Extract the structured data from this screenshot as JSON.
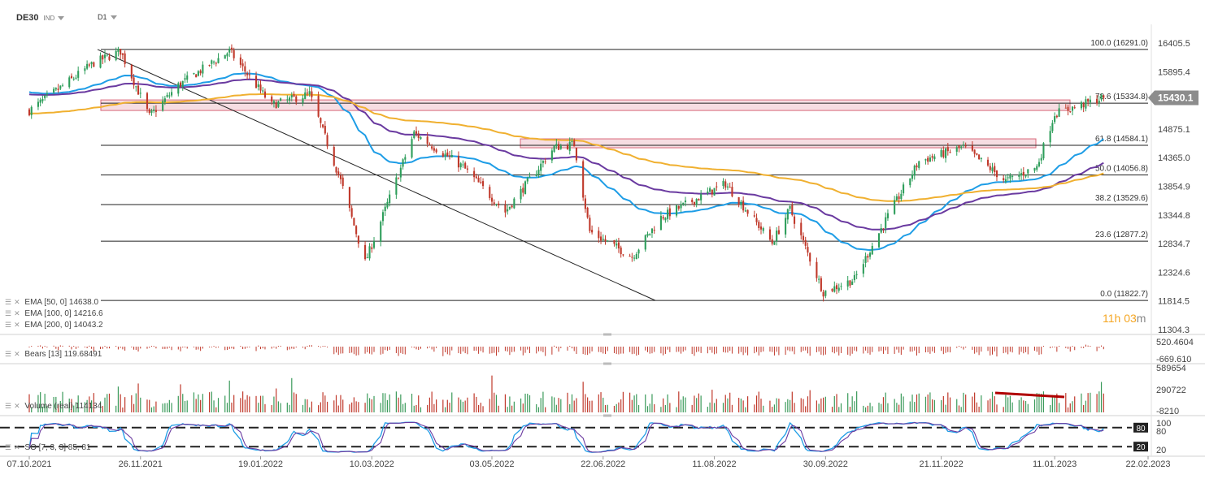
{
  "header": {
    "symbol": "DE30",
    "type": "IND",
    "timeframe": "D1"
  },
  "timer": {
    "hours": "11h",
    "minutes": "03",
    "unit": "m"
  },
  "price_badge": "15430.1",
  "price_axis": [
    "16405.5",
    "15895.4",
    "15385.3",
    "14875.1",
    "14365.0",
    "13854.9",
    "13344.8",
    "12834.7",
    "12324.6",
    "11814.5",
    "11304.3"
  ],
  "date_axis": [
    "07.10.2021",
    "26.11.2021",
    "19.01.2022",
    "10.03.2022",
    "03.05.2022",
    "22.06.2022",
    "11.08.2022",
    "30.09.2022",
    "21.11.2022",
    "11.01.2023",
    "22.02.2023"
  ],
  "fib_levels": [
    {
      "label": "100.0 (16291.0)",
      "value": 16291.0
    },
    {
      "label": "78.6 (15334.8)",
      "value": 15334.8
    },
    {
      "label": "61.8 (14584.1)",
      "value": 14584.1
    },
    {
      "label": "50.0 (14056.8)",
      "value": 14056.8
    },
    {
      "label": "38.2 (13529.6)",
      "value": 13529.6
    },
    {
      "label": "23.6 (12877.2)",
      "value": 12877.2
    },
    {
      "label": "0.0 (11822.7)",
      "value": 11822.7
    }
  ],
  "indicators": {
    "ema50": {
      "label": "EMA [50, 0]",
      "value": "14638.0",
      "color": "#1e9de6"
    },
    "ema100": {
      "label": "EMA [100, 0]",
      "value": "14216.6",
      "color": "#6a3aa0"
    },
    "ema200": {
      "label": "EMA [200, 0]",
      "value": "14043.2",
      "color": "#f0b030"
    }
  },
  "bears": {
    "label": "Bears [13]",
    "value": "119.68491",
    "axis_top": "520.4604",
    "axis_bottom": "-669.610"
  },
  "volume": {
    "label": "Volume (real)",
    "value": "114134",
    "axis": [
      "589654",
      "290722",
      "-8210"
    ]
  },
  "so": {
    "label": "SO [7, 3, 3]",
    "value": "85, 81",
    "axis": [
      "100",
      "80",
      "20"
    ],
    "level_high": "80",
    "level_low": "20"
  },
  "colors": {
    "up": "#2e9e5b",
    "down": "#c0392b",
    "zone_fill": "#f6dde2",
    "zone_stroke": "#d9687a",
    "badge": "#8c8c8c"
  },
  "chart_data": {
    "type": "candlestick",
    "symbol": "DE30",
    "timeframe": "D1",
    "x_range": [
      "07.10.2021",
      "22.02.2023"
    ],
    "y_range": [
      11304.3,
      16405.5
    ],
    "close_path": [
      {
        "date": "07.10.2021",
        "close": 15200
      },
      {
        "date": "05.11.2021",
        "close": 16050
      },
      {
        "date": "17.11.2021",
        "close": 16260
      },
      {
        "date": "30.11.2021",
        "close": 15100
      },
      {
        "date": "13.12.2021",
        "close": 15650
      },
      {
        "date": "05.01.2022",
        "close": 16260
      },
      {
        "date": "24.01.2022",
        "close": 15300
      },
      {
        "date": "10.02.2022",
        "close": 15500
      },
      {
        "date": "24.02.2022",
        "close": 13950
      },
      {
        "date": "07.03.2022",
        "close": 12500
      },
      {
        "date": "29.03.2022",
        "close": 14800
      },
      {
        "date": "20.04.2022",
        "close": 14200
      },
      {
        "date": "09.05.2022",
        "close": 13400
      },
      {
        "date": "31.05.2022",
        "close": 14550
      },
      {
        "date": "09.06.2022",
        "close": 14600
      },
      {
        "date": "16.06.2022",
        "close": 13050
      },
      {
        "date": "05.07.2022",
        "close": 12600
      },
      {
        "date": "18.07.2022",
        "close": 13300
      },
      {
        "date": "16.08.2022",
        "close": 13900
      },
      {
        "date": "06.09.2022",
        "close": 12850
      },
      {
        "date": "14.09.2022",
        "close": 13450
      },
      {
        "date": "29.09.2022",
        "close": 11970
      },
      {
        "date": "13.10.2022",
        "close": 12200
      },
      {
        "date": "27.10.2022",
        "close": 13250
      },
      {
        "date": "11.11.2022",
        "close": 14300
      },
      {
        "date": "01.12.2022",
        "close": 14550
      },
      {
        "date": "20.12.2022",
        "close": 13950
      },
      {
        "date": "03.01.2023",
        "close": 14200
      },
      {
        "date": "11.01.2023",
        "close": 15150
      },
      {
        "date": "02.02.2023",
        "close": 15430
      }
    ],
    "series": [
      {
        "name": "EMA [50, 0]",
        "last": 14638.0
      },
      {
        "name": "EMA [100, 0]",
        "last": 14216.6
      },
      {
        "name": "EMA [200, 0]",
        "last": 14043.2
      }
    ],
    "horizontal_levels": [
      16291.0,
      15334.8,
      14584.1,
      14056.8,
      13529.6,
      12877.2,
      11822.7
    ],
    "last_price": 15430.1,
    "volume_axis": [
      589654,
      290722,
      -8210
    ],
    "bears_axis": [
      520.4604,
      -669.61
    ],
    "so_levels": [
      20,
      80
    ]
  }
}
